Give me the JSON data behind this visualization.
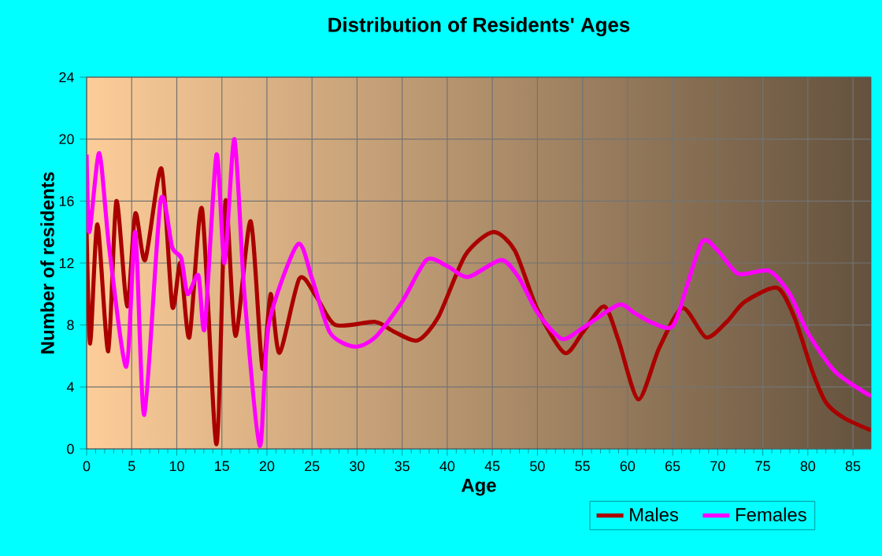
{
  "chart_data": {
    "type": "line",
    "title": "Distribution of Residents' Ages",
    "xlabel": "Age",
    "ylabel": "Number of residents",
    "xlim": [
      0,
      87
    ],
    "xticks": [
      0,
      5,
      10,
      15,
      20,
      25,
      30,
      35,
      40,
      45,
      50,
      55,
      60,
      65,
      70,
      75,
      80,
      85
    ],
    "ylim": [
      0,
      24
    ],
    "yticks": [
      0,
      4,
      8,
      12,
      16,
      20,
      24
    ],
    "grid": true,
    "legend": "bottom",
    "series": [
      {
        "name": "Males",
        "color": "#aa0000",
        "x": [
          0,
          0.4,
          1.2,
          2.4,
          3.3,
          4.5,
          5.4,
          6.5,
          8.3,
          9.5,
          10.4,
          11.4,
          12.8,
          14.4,
          15.4,
          16.5,
          18.2,
          19.5,
          20.4,
          21.4,
          23.6,
          25.5,
          27.6,
          32,
          34,
          36.7,
          39,
          42,
          45.1,
          47.5,
          50,
          53,
          55,
          57.4,
          59,
          61.2,
          63.5,
          66.1,
          68.7,
          71,
          73,
          76.6,
          78.5,
          80.5,
          82,
          84,
          87
        ],
        "values": [
          14,
          6.8,
          14.5,
          6.3,
          16,
          9.2,
          15.2,
          12.2,
          18.1,
          9.2,
          12,
          7.2,
          15.5,
          0.3,
          16,
          7.3,
          14.7,
          5.2,
          10,
          6.2,
          11,
          9.8,
          8,
          8.2,
          7.6,
          7,
          8.5,
          12.5,
          14,
          12.8,
          9,
          6.2,
          7.5,
          9.2,
          7,
          3.2,
          6.5,
          9.1,
          7.2,
          8.2,
          9.5,
          10.4,
          8.5,
          5,
          3,
          2,
          1.2
        ]
      },
      {
        "name": "Females",
        "color": "#ff00ff",
        "x": [
          0,
          0.3,
          1.4,
          2.5,
          4.4,
          5.4,
          6.4,
          8.2,
          9.5,
          10.5,
          11.2,
          12.4,
          13.1,
          14.4,
          15.3,
          16.4,
          17.5,
          19.2,
          20.2,
          23.4,
          25,
          27,
          29.7,
          32,
          35,
          37.7,
          40,
          42.3,
          46,
          48,
          50,
          52.7,
          55,
          59,
          60.7,
          62.5,
          64.5,
          65.5,
          68.2,
          70,
          72.3,
          75.7,
          78,
          80,
          83,
          87
        ],
        "values": [
          19,
          14,
          19.1,
          13,
          5.3,
          14,
          2.2,
          16,
          13,
          12.3,
          10,
          11.2,
          7.8,
          19,
          12,
          20,
          10,
          0.2,
          8,
          13.2,
          11,
          7.5,
          6.6,
          7.2,
          9.5,
          12.2,
          11.8,
          11.1,
          12.2,
          11,
          8.8,
          7.1,
          7.8,
          9.3,
          8.8,
          8.2,
          7.8,
          8.5,
          13.3,
          12.8,
          11.3,
          11.5,
          10,
          7.5,
          5,
          3.4
        ]
      }
    ]
  }
}
